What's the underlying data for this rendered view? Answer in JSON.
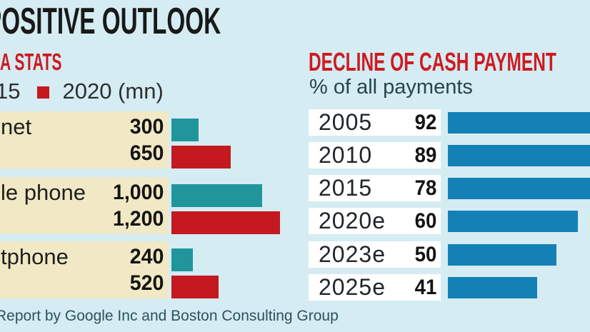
{
  "title": "POSITIVE OUTLOOK",
  "left_chart": {
    "heading": "A STATS",
    "legend": {
      "series1_label": "15",
      "series2_label": "2020 (mn)"
    },
    "groups": [
      {
        "category": "net",
        "value_2015": "300",
        "value_2020": "650"
      },
      {
        "category": "le phone",
        "value_2015": "1,000",
        "value_2020": "1,200"
      },
      {
        "category": "tphone",
        "value_2015": "240",
        "value_2020": "520"
      }
    ]
  },
  "right_chart": {
    "heading": "DECLINE OF CASH PAYMENT",
    "subtitle": "% of all payments",
    "rows": [
      {
        "year": "2005",
        "value": "92"
      },
      {
        "year": "2010",
        "value": "89"
      },
      {
        "year": "2015",
        "value": "78"
      },
      {
        "year": "2020e",
        "value": "60"
      },
      {
        "year": "2023e",
        "value": "50"
      },
      {
        "year": "2025e",
        "value": "41"
      }
    ]
  },
  "footer": "Report by Google Inc and Boston Consulting Group",
  "colors": {
    "background": "#d5ecf3",
    "band": "#f1e9c5",
    "teal_bar": "#20969c",
    "red_bar": "#c3191f",
    "blue_bar": "#1381b5",
    "heading_red": "#cd1b21",
    "title_black": "#191919",
    "dark_teal_text": "#2b535c",
    "row_label_bg": "#ffffff"
  },
  "chart_data": [
    {
      "type": "bar",
      "orientation": "horizontal",
      "title": "A STATS",
      "unit": "mn",
      "legend_position": "top",
      "categories": [
        "net",
        "le phone",
        "tphone"
      ],
      "series": [
        {
          "name": "15",
          "color": "#20969c",
          "values": [
            300,
            1000,
            240
          ]
        },
        {
          "name": "2020 (mn)",
          "color": "#c3191f",
          "values": [
            650,
            1200,
            520
          ]
        }
      ]
    },
    {
      "type": "bar",
      "orientation": "horizontal",
      "title": "DECLINE OF CASH PAYMENT",
      "subtitle": "% of all payments",
      "categories": [
        "2005",
        "2010",
        "2015",
        "2020e",
        "2023e",
        "2025e"
      ],
      "values": [
        92,
        89,
        78,
        60,
        50,
        41
      ],
      "xlim": [
        0,
        100
      ],
      "color": "#1381b5",
      "grid": false,
      "note_layout": "bars for 92, 89 and 78 run past the right crop edge"
    }
  ]
}
